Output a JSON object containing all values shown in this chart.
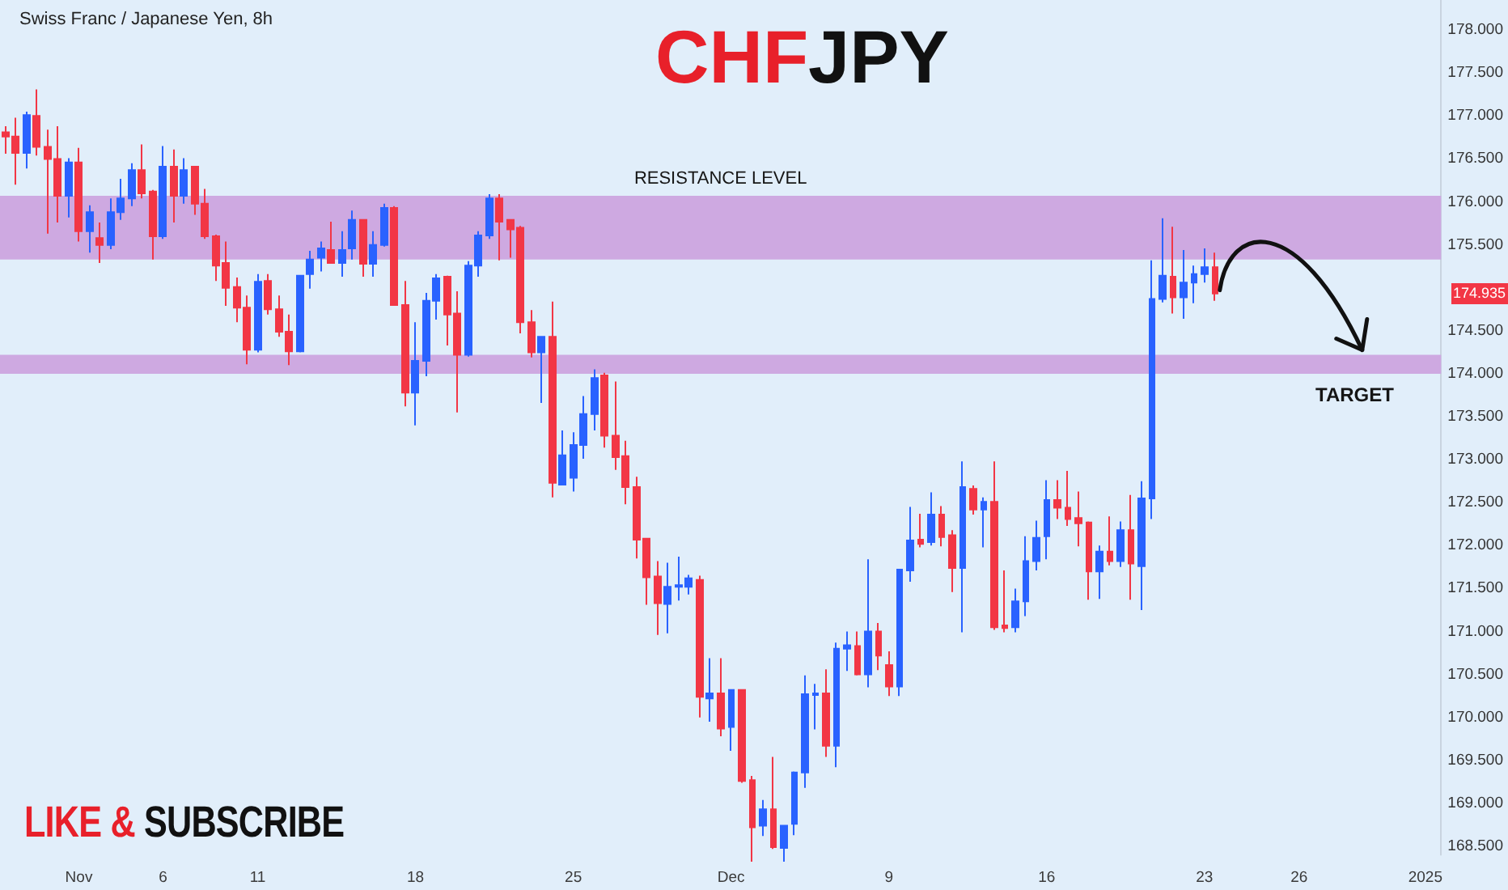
{
  "chart_data": {
    "type": "candlestick",
    "title": "CHFJPY",
    "subtitle": "Swiss Franc / Japanese Yen, 8h",
    "categories": [
      null,
      null,
      null,
      null,
      null,
      null,
      null,
      "Nov",
      null,
      null,
      null,
      null,
      null,
      null,
      null,
      "6",
      null,
      null,
      null,
      null,
      null,
      null,
      null,
      null,
      "11",
      null,
      null,
      null,
      null,
      null,
      null,
      null,
      null,
      null,
      null,
      null,
      null,
      null,
      null,
      "18",
      null,
      null,
      null,
      null,
      null,
      null,
      null,
      null,
      null,
      null,
      null,
      null,
      null,
      null,
      "25",
      null,
      null,
      null,
      null,
      null,
      null,
      null,
      null,
      null,
      null,
      null,
      null,
      null,
      null,
      "Dec",
      null,
      null,
      null,
      null,
      null,
      null,
      null,
      null,
      null,
      null,
      null,
      null,
      null,
      null,
      "9",
      null,
      null,
      null,
      null,
      null,
      null,
      null,
      null,
      null,
      null,
      null,
      null,
      null,
      null,
      "16",
      null,
      null,
      null,
      null,
      null,
      null,
      null,
      null,
      null,
      null,
      null,
      null,
      null,
      null,
      "23",
      null,
      null,
      null,
      null,
      null,
      null,
      null,
      null,
      "26",
      null,
      null,
      null,
      null,
      null,
      null,
      null,
      null,
      null,
      null,
      null,
      "2025",
      null
    ],
    "ohlc": [
      [
        176.81,
        176.88,
        176.56,
        176.76
      ],
      [
        176.76,
        176.98,
        176.2,
        176.57
      ],
      [
        176.57,
        177.05,
        176.39,
        177.01
      ],
      [
        177.0,
        177.31,
        176.54,
        176.64
      ],
      [
        176.64,
        176.84,
        175.63,
        176.5
      ],
      [
        176.5,
        176.88,
        175.76,
        176.07
      ],
      [
        176.07,
        176.51,
        175.82,
        176.46
      ],
      [
        176.46,
        176.63,
        175.54,
        175.66
      ],
      [
        175.66,
        175.96,
        175.41,
        175.88
      ],
      [
        175.58,
        175.76,
        175.29,
        175.5
      ],
      [
        175.5,
        176.04,
        175.45,
        175.88
      ],
      [
        175.88,
        176.27,
        175.79,
        176.04
      ],
      [
        176.04,
        176.45,
        175.95,
        176.37
      ],
      [
        176.37,
        176.67,
        176.04,
        176.1
      ],
      [
        176.12,
        176.14,
        175.33,
        175.6
      ],
      [
        175.6,
        176.65,
        175.57,
        176.41
      ],
      [
        176.41,
        176.61,
        175.76,
        176.07
      ],
      [
        176.07,
        176.51,
        175.98,
        176.37
      ],
      [
        176.41,
        176.42,
        175.85,
        175.98
      ],
      [
        175.98,
        176.15,
        175.57,
        175.6
      ],
      [
        175.6,
        175.62,
        175.08,
        175.26
      ],
      [
        175.29,
        175.54,
        174.79,
        175.0
      ],
      [
        175.01,
        175.12,
        174.6,
        174.77
      ],
      [
        174.77,
        174.91,
        174.11,
        174.28
      ],
      [
        174.28,
        175.16,
        174.25,
        175.07
      ],
      [
        175.08,
        175.16,
        174.69,
        174.75
      ],
      [
        174.75,
        174.91,
        174.43,
        174.49
      ],
      [
        174.49,
        174.69,
        174.1,
        174.26
      ],
      [
        174.26,
        175.15,
        174.25,
        175.14
      ],
      [
        175.16,
        175.43,
        174.99,
        175.33
      ],
      [
        175.35,
        175.54,
        175.19,
        175.46
      ],
      [
        175.44,
        175.77,
        175.28,
        175.29
      ],
      [
        175.29,
        175.66,
        175.13,
        175.44
      ],
      [
        175.46,
        175.9,
        175.33,
        175.79
      ],
      [
        175.79,
        175.8,
        175.13,
        175.28
      ],
      [
        175.28,
        175.66,
        175.13,
        175.5
      ],
      [
        175.5,
        175.98,
        175.48,
        175.93
      ],
      [
        175.93,
        175.95,
        174.79,
        174.8
      ],
      [
        174.8,
        175.08,
        173.62,
        173.78
      ],
      [
        173.78,
        174.6,
        173.4,
        174.15
      ],
      [
        174.15,
        174.94,
        173.97,
        174.85
      ],
      [
        174.85,
        175.16,
        174.63,
        175.11
      ],
      [
        175.13,
        175.14,
        174.33,
        174.69
      ],
      [
        174.7,
        174.96,
        173.55,
        174.22
      ],
      [
        174.22,
        175.31,
        174.2,
        175.26
      ],
      [
        175.26,
        175.66,
        175.13,
        175.61
      ],
      [
        175.61,
        176.09,
        175.57,
        176.04
      ],
      [
        176.04,
        176.09,
        175.32,
        175.77
      ],
      [
        175.79,
        175.8,
        175.35,
        175.68
      ],
      [
        175.7,
        175.72,
        174.47,
        174.6
      ],
      [
        174.6,
        174.74,
        174.19,
        174.25
      ],
      [
        174.25,
        174.44,
        173.66,
        174.43
      ],
      [
        174.43,
        174.84,
        172.56,
        172.73
      ],
      [
        172.71,
        173.34,
        172.7,
        173.05
      ],
      [
        172.79,
        173.32,
        172.63,
        173.17
      ],
      [
        173.17,
        173.74,
        173.01,
        173.53
      ],
      [
        173.53,
        174.05,
        173.34,
        173.95
      ],
      [
        173.98,
        174.01,
        173.14,
        173.28
      ],
      [
        173.28,
        173.91,
        172.88,
        173.03
      ],
      [
        173.04,
        173.22,
        172.48,
        172.68
      ],
      [
        172.68,
        172.8,
        171.85,
        172.07
      ],
      [
        172.08,
        172.09,
        171.31,
        171.63
      ],
      [
        171.64,
        171.82,
        170.96,
        171.33
      ],
      [
        171.32,
        171.8,
        170.98,
        171.52
      ],
      [
        171.52,
        171.87,
        171.36,
        171.54
      ],
      [
        171.52,
        171.66,
        171.43,
        171.62
      ],
      [
        171.6,
        171.65,
        170.0,
        170.24
      ],
      [
        170.22,
        170.69,
        169.95,
        170.28
      ],
      [
        170.28,
        170.69,
        169.78,
        169.87
      ],
      [
        169.89,
        170.33,
        169.61,
        170.32
      ],
      [
        170.32,
        170.33,
        169.24,
        169.26
      ],
      [
        169.27,
        169.32,
        168.32,
        168.72
      ],
      [
        168.74,
        169.04,
        168.62,
        168.93
      ],
      [
        168.93,
        169.54,
        168.47,
        168.49
      ],
      [
        168.48,
        168.75,
        168.32,
        168.74
      ],
      [
        168.76,
        169.37,
        168.63,
        169.36
      ],
      [
        169.36,
        170.49,
        169.18,
        170.27
      ],
      [
        170.26,
        170.39,
        169.86,
        170.28
      ],
      [
        170.28,
        170.56,
        169.54,
        169.67
      ],
      [
        169.67,
        170.87,
        169.42,
        170.8
      ],
      [
        170.8,
        171.0,
        170.54,
        170.84
      ],
      [
        170.83,
        171.0,
        170.49,
        170.5
      ],
      [
        170.5,
        171.84,
        170.35,
        171.0
      ],
      [
        171.0,
        171.1,
        170.55,
        170.72
      ],
      [
        170.61,
        170.77,
        170.25,
        170.36
      ],
      [
        170.36,
        171.73,
        170.25,
        171.72
      ],
      [
        171.71,
        172.45,
        171.58,
        172.06
      ],
      [
        172.07,
        172.37,
        171.98,
        172.02
      ],
      [
        172.04,
        172.62,
        172.0,
        172.36
      ],
      [
        172.36,
        172.46,
        171.99,
        172.1
      ],
      [
        172.12,
        172.18,
        171.46,
        171.74
      ],
      [
        171.74,
        172.98,
        170.99,
        172.68
      ],
      [
        172.66,
        172.7,
        172.36,
        172.42
      ],
      [
        172.42,
        172.56,
        171.98,
        172.51
      ],
      [
        172.51,
        172.98,
        171.02,
        171.05
      ],
      [
        171.07,
        171.71,
        170.99,
        171.04
      ],
      [
        171.05,
        171.5,
        170.99,
        171.35
      ],
      [
        171.35,
        172.11,
        171.18,
        171.82
      ],
      [
        171.82,
        172.29,
        171.71,
        172.09
      ],
      [
        172.11,
        172.76,
        171.84,
        172.53
      ],
      [
        172.53,
        172.76,
        172.31,
        172.44
      ],
      [
        172.44,
        172.87,
        172.23,
        172.31
      ],
      [
        172.32,
        172.63,
        171.99,
        172.26
      ],
      [
        172.27,
        172.28,
        171.37,
        171.7
      ],
      [
        171.7,
        172.0,
        171.38,
        171.93
      ],
      [
        171.93,
        172.34,
        171.77,
        171.82
      ],
      [
        171.82,
        172.28,
        171.75,
        172.18
      ],
      [
        172.18,
        172.59,
        171.37,
        171.79
      ],
      [
        171.76,
        172.75,
        171.25,
        172.55
      ],
      [
        172.55,
        175.32,
        172.31,
        174.87
      ],
      [
        174.87,
        175.81,
        174.83,
        175.14
      ],
      [
        175.13,
        175.71,
        174.7,
        174.89
      ],
      [
        174.89,
        175.44,
        174.64,
        175.06
      ],
      [
        175.06,
        175.26,
        174.82,
        175.16
      ],
      [
        175.16,
        175.46,
        175.06,
        175.24
      ],
      [
        175.24,
        175.41,
        174.85,
        174.935
      ],
      null,
      null,
      null,
      null,
      null,
      null,
      null,
      null,
      null,
      null,
      null,
      null,
      null,
      null,
      null,
      null,
      null,
      null,
      null,
      null,
      null
    ],
    "colors": [
      "#f23645",
      "#f23645",
      "#2962ff",
      "#f23645",
      "#f23645",
      "#f23645",
      "#2962ff",
      "#f23645",
      "#2962ff",
      "#f23645",
      "#2962ff",
      "#2962ff",
      "#2962ff",
      "#f23645",
      "#f23645",
      "#2962ff",
      "#f23645",
      "#2962ff",
      "#f23645",
      "#f23645",
      "#f23645",
      "#f23645",
      "#f23645",
      "#f23645",
      "#2962ff",
      "#f23645",
      "#f23645",
      "#f23645",
      "#2962ff",
      "#2962ff",
      "#2962ff",
      "#f23645",
      "#2962ff",
      "#2962ff",
      "#f23645",
      "#2962ff",
      "#2962ff",
      "#f23645",
      "#f23645",
      "#2962ff",
      "#2962ff",
      "#2962ff",
      "#f23645",
      "#f23645",
      "#2962ff",
      "#2962ff",
      "#2962ff",
      "#f23645",
      "#f23645",
      "#f23645",
      "#f23645",
      "#2962ff",
      "#f23645",
      "#2962ff",
      "#2962ff",
      "#2962ff",
      "#2962ff",
      "#f23645",
      "#f23645",
      "#f23645",
      "#f23645",
      "#f23645",
      "#f23645",
      "#2962ff",
      "#2962ff",
      "#2962ff",
      "#f23645",
      "#2962ff",
      "#f23645",
      "#2962ff",
      "#f23645",
      "#f23645",
      "#2962ff",
      "#f23645",
      "#2962ff",
      "#2962ff",
      "#2962ff",
      "#2962ff",
      "#f23645",
      "#2962ff",
      "#2962ff",
      "#f23645",
      "#2962ff",
      "#f23645",
      "#f23645",
      "#2962ff",
      "#2962ff",
      "#f23645",
      "#2962ff",
      "#f23645",
      "#f23645",
      "#2962ff",
      "#f23645",
      "#2962ff",
      "#f23645",
      "#f23645",
      "#2962ff",
      "#2962ff",
      "#2962ff",
      "#2962ff",
      "#f23645",
      "#f23645",
      "#f23645",
      "#f23645",
      "#2962ff",
      "#f23645",
      "#2962ff",
      "#f23645",
      "#2962ff",
      "#2962ff",
      "#2962ff",
      "#f23645",
      "#2962ff",
      "#2962ff",
      "#2962ff",
      "#f23645",
      null,
      null,
      null,
      null,
      null,
      null,
      null,
      null,
      null,
      null,
      null,
      null,
      null,
      null,
      null,
      null,
      null,
      null,
      null,
      null,
      null
    ],
    "ylim": [
      168.4,
      178.35
    ],
    "yticks": [
      {
        "value": 168.5,
        "label": "168.500"
      },
      {
        "value": 169,
        "label": "169.000"
      },
      {
        "value": 169.5,
        "label": "169.500"
      },
      {
        "value": 170,
        "label": "170.000"
      },
      {
        "value": 170.5,
        "label": "170.500"
      },
      {
        "value": 171,
        "label": "171.000"
      },
      {
        "value": 171.5,
        "label": "171.500"
      },
      {
        "value": 172,
        "label": "172.000"
      },
      {
        "value": 172.5,
        "label": "172.500"
      },
      {
        "value": 173,
        "label": "173.000"
      },
      {
        "value": 173.5,
        "label": "173.500"
      },
      {
        "value": 174,
        "label": "174.000"
      },
      {
        "value": 174.5,
        "label": "174.500"
      },
      {
        "value": 175.5,
        "label": "175.500"
      },
      {
        "value": 176,
        "label": "176.000"
      },
      {
        "value": 176.5,
        "label": "176.500"
      },
      {
        "value": 177,
        "label": "177.000"
      },
      {
        "value": 177.5,
        "label": "177.500"
      },
      {
        "value": 178,
        "label": "178.000"
      }
    ],
    "bands": [
      {
        "axis": "y",
        "from": 175.33,
        "to": 176.07,
        "label": "RESISTANCE LEVEL",
        "color": "#cea9e1"
      },
      {
        "axis": "y",
        "from": 174.0,
        "to": 174.22,
        "label": "TARGET",
        "color": "#cea9e1"
      }
    ],
    "annotations": [
      "174.935",
      "LIKE & SUBSCRIBE"
    ]
  }
}
